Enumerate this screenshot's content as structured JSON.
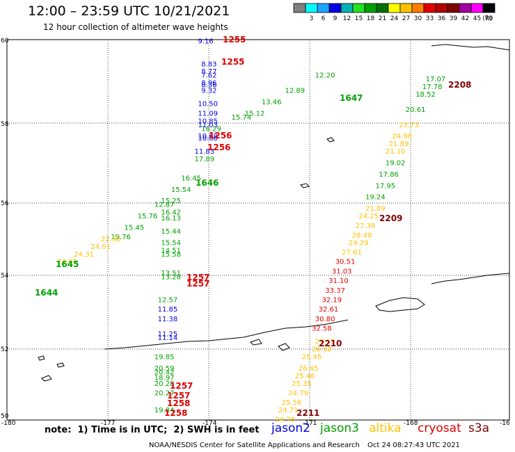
{
  "header": {
    "title": "12:00 – 23:59 UTC 10/21/2021",
    "subtitle": "12 hour collection of altimeter wave heights"
  },
  "colorbar": {
    "unit_label": "(ft)",
    "bins": [
      {
        "label": "",
        "color": "#7f7f7f"
      },
      {
        "label": "3",
        "color": "#00ffff"
      },
      {
        "label": "6",
        "color": "#1ea3ff"
      },
      {
        "label": "9",
        "color": "#0000e0"
      },
      {
        "label": "12",
        "color": "#00b2b2"
      },
      {
        "label": "15",
        "color": "#23e123"
      },
      {
        "label": "18",
        "color": "#00a000"
      },
      {
        "label": "21",
        "color": "#007000"
      },
      {
        "label": "24",
        "color": "#ffff00"
      },
      {
        "label": "27",
        "color": "#ffc000"
      },
      {
        "label": "30",
        "color": "#ff8000"
      },
      {
        "label": "33",
        "color": "#e00000"
      },
      {
        "label": "36",
        "color": "#b00000"
      },
      {
        "label": "39",
        "color": "#800000"
      },
      {
        "label": "42",
        "color": "#a000a0"
      },
      {
        "label": "45",
        "color": "#ff00ff"
      },
      {
        "label": "70",
        "color": "#000000"
      }
    ]
  },
  "map": {
    "lon_ticks": [
      "-180",
      "-177",
      "-174",
      "-171",
      "-168",
      "-16"
    ],
    "lat_ticks": [
      "60",
      "58",
      "56",
      "54",
      "52",
      "50"
    ]
  },
  "chart_data": {
    "type": "scatter",
    "title": "12:00 – 23:59 UTC 10/21/2021",
    "xlabel": "",
    "ylabel": "",
    "xlim": [
      -180,
      -165
    ],
    "ylim": [
      50,
      60
    ],
    "grid": true,
    "series": [
      {
        "name": "jason2",
        "color": "#0000e0",
        "points": [
          {
            "lon": -174.3,
            "lat": 59.9,
            "swh": 9.16
          },
          {
            "lon": -174.2,
            "lat": 59.3,
            "swh": 8.83
          },
          {
            "lon": -174.2,
            "lat": 59.1,
            "swh": 8.77
          },
          {
            "lon": -174.2,
            "lat": 59.0,
            "swh": 7.62
          },
          {
            "lon": -174.2,
            "lat": 58.8,
            "swh": 8.96
          },
          {
            "lon": -174.2,
            "lat": 58.75,
            "swh": 8.36
          },
          {
            "lon": -174.2,
            "lat": 58.6,
            "swh": 9.32
          },
          {
            "lon": -174.3,
            "lat": 58.25,
            "swh": 10.5
          },
          {
            "lon": -174.3,
            "lat": 58.0,
            "swh": 11.09
          },
          {
            "lon": -174.3,
            "lat": 57.8,
            "swh": 10.85
          },
          {
            "lon": -174.3,
            "lat": 57.7,
            "swh": 11.03
          },
          {
            "lon": -174.3,
            "lat": 57.4,
            "swh": 10.69
          },
          {
            "lon": -174.3,
            "lat": 57.35,
            "swh": 10.68
          },
          {
            "lon": -174.4,
            "lat": 57.0,
            "swh": 11.83
          },
          {
            "lon": -175.5,
            "lat": 52.85,
            "swh": 11.85
          },
          {
            "lon": -175.5,
            "lat": 52.6,
            "swh": 11.38
          },
          {
            "lon": -175.5,
            "lat": 52.2,
            "swh": 11.25
          },
          {
            "lon": -175.5,
            "lat": 52.1,
            "swh": 11.14
          }
        ]
      },
      {
        "name": "jason3",
        "color": "#00a000",
        "points": [
          {
            "lon": -176.9,
            "lat": 54.75,
            "swh": 19.76
          },
          {
            "lon": -176.5,
            "lat": 55.0,
            "swh": 15.45
          },
          {
            "lon": -176.1,
            "lat": 55.3,
            "swh": 15.76
          },
          {
            "lon": -175.6,
            "lat": 55.6,
            "swh": 12.87
          },
          {
            "lon": -175.1,
            "lat": 56.0,
            "swh": 15.54
          },
          {
            "lon": -174.8,
            "lat": 56.3,
            "swh": 16.45
          },
          {
            "lon": -174.4,
            "lat": 56.8,
            "swh": 17.89
          },
          {
            "lon": -174.2,
            "lat": 57.6,
            "swh": 16.29
          },
          {
            "lon": -173.3,
            "lat": 57.9,
            "swh": 15.74
          },
          {
            "lon": -172.9,
            "lat": 58.0,
            "swh": 15.12
          },
          {
            "lon": -172.4,
            "lat": 58.3,
            "swh": 13.46
          },
          {
            "lon": -171.7,
            "lat": 58.6,
            "swh": 12.89
          },
          {
            "lon": -170.8,
            "lat": 59.0,
            "swh": 12.2
          },
          {
            "lon": -175.4,
            "lat": 55.7,
            "swh": 15.25
          },
          {
            "lon": -175.4,
            "lat": 55.4,
            "swh": 16.42
          },
          {
            "lon": -175.4,
            "lat": 55.25,
            "swh": 16.13
          },
          {
            "lon": -175.4,
            "lat": 54.9,
            "swh": 15.44
          },
          {
            "lon": -175.4,
            "lat": 54.6,
            "swh": 15.54
          },
          {
            "lon": -175.4,
            "lat": 54.4,
            "swh": 14.51
          },
          {
            "lon": -175.4,
            "lat": 54.3,
            "swh": 15.58
          },
          {
            "lon": -175.4,
            "lat": 53.8,
            "swh": 13.51
          },
          {
            "lon": -175.4,
            "lat": 53.7,
            "swh": 13.28
          },
          {
            "lon": -175.5,
            "lat": 53.1,
            "swh": 12.57
          },
          {
            "lon": -175.6,
            "lat": 51.6,
            "swh": 19.85
          },
          {
            "lon": -175.6,
            "lat": 51.3,
            "swh": 20.59
          },
          {
            "lon": -175.6,
            "lat": 51.2,
            "swh": 20.42
          },
          {
            "lon": -175.6,
            "lat": 51.05,
            "swh": 18.97
          },
          {
            "lon": -175.6,
            "lat": 50.9,
            "swh": 20.28
          },
          {
            "lon": -175.6,
            "lat": 50.65,
            "swh": 20.27
          },
          {
            "lon": -175.6,
            "lat": 50.2,
            "swh": 19.84
          },
          {
            "lon": -168.7,
            "lat": 56.7,
            "swh": 19.02
          },
          {
            "lon": -168.9,
            "lat": 56.4,
            "swh": 17.86
          },
          {
            "lon": -169.0,
            "lat": 56.1,
            "swh": 17.95
          },
          {
            "lon": -169.3,
            "lat": 55.8,
            "swh": 19.24
          },
          {
            "lon": -167.5,
            "lat": 58.9,
            "swh": 17.07
          },
          {
            "lon": -167.6,
            "lat": 58.7,
            "swh": 17.78
          },
          {
            "lon": -167.8,
            "lat": 58.5,
            "swh": 18.52
          },
          {
            "lon": -168.1,
            "lat": 58.1,
            "swh": 20.61
          }
        ]
      },
      {
        "name": "altika",
        "color": "#ffc000",
        "points": [
          {
            "lon": -178.5,
            "lat": 54.1,
            "swh": 24.99
          },
          {
            "lon": -178.0,
            "lat": 54.3,
            "swh": 24.31
          },
          {
            "lon": -177.5,
            "lat": 54.5,
            "swh": 24.01
          },
          {
            "lon": -177.2,
            "lat": 54.7,
            "swh": 22.58
          },
          {
            "lon": -169.3,
            "lat": 55.5,
            "swh": 21.89
          },
          {
            "lon": -169.5,
            "lat": 55.3,
            "swh": 24.25
          },
          {
            "lon": -169.6,
            "lat": 55.05,
            "swh": 27.38
          },
          {
            "lon": -169.7,
            "lat": 54.8,
            "swh": 28.48
          },
          {
            "lon": -169.8,
            "lat": 54.6,
            "swh": 29.29
          },
          {
            "lon": -170.0,
            "lat": 54.35,
            "swh": 27.61
          },
          {
            "lon": -170.8,
            "lat": 52.0,
            "swh": 27.15
          },
          {
            "lon": -170.9,
            "lat": 51.8,
            "swh": 26.58
          },
          {
            "lon": -171.2,
            "lat": 51.6,
            "swh": 25.45
          },
          {
            "lon": -171.3,
            "lat": 51.3,
            "swh": 26.45
          },
          {
            "lon": -171.4,
            "lat": 51.1,
            "swh": 25.46
          },
          {
            "lon": -171.5,
            "lat": 50.9,
            "swh": 25.35
          },
          {
            "lon": -171.6,
            "lat": 50.65,
            "swh": 24.79
          },
          {
            "lon": -171.8,
            "lat": 50.4,
            "swh": 25.56
          },
          {
            "lon": -171.9,
            "lat": 50.2,
            "swh": 24.71
          },
          {
            "lon": -172.0,
            "lat": 49.95,
            "swh": 24.78
          },
          {
            "lon": -168.3,
            "lat": 57.7,
            "swh": 23.73
          },
          {
            "lon": -168.5,
            "lat": 57.4,
            "swh": 24.98
          },
          {
            "lon": -168.6,
            "lat": 57.2,
            "swh": 21.89
          },
          {
            "lon": -168.7,
            "lat": 57.0,
            "swh": 21.1
          }
        ]
      },
      {
        "name": "cryosat",
        "color": "#e00000",
        "points": [
          {
            "lon": -170.2,
            "lat": 54.1,
            "swh": 30.51
          },
          {
            "lon": -170.3,
            "lat": 53.85,
            "swh": 31.03
          },
          {
            "lon": -170.4,
            "lat": 53.6,
            "swh": 31.1
          },
          {
            "lon": -170.5,
            "lat": 53.35,
            "swh": 33.37
          },
          {
            "lon": -170.6,
            "lat": 53.1,
            "swh": 32.19
          },
          {
            "lon": -170.7,
            "lat": 52.85,
            "swh": 32.61
          },
          {
            "lon": -170.8,
            "lat": 52.6,
            "swh": 30.8
          },
          {
            "lon": -170.9,
            "lat": 52.35,
            "swh": 32.58
          }
        ]
      },
      {
        "name": "s3a",
        "color": "#800000",
        "points": []
      }
    ]
  },
  "time_labels": [
    {
      "text": "1255",
      "color": "#e00000"
    },
    {
      "text": "1255",
      "color": "#e00000"
    },
    {
      "text": "1256",
      "color": "#e00000"
    },
    {
      "text": "1256",
      "color": "#e00000"
    },
    {
      "text": "1646",
      "color": "#00a000"
    },
    {
      "text": "1647",
      "color": "#00a000"
    },
    {
      "text": "1645",
      "color": "#00a000"
    },
    {
      "text": "1644",
      "color": "#00a000"
    },
    {
      "text": "1257",
      "color": "#e00000"
    },
    {
      "text": "1257",
      "color": "#e00000"
    },
    {
      "text": "1257",
      "color": "#e00000"
    },
    {
      "text": "1257",
      "color": "#e00000"
    },
    {
      "text": "1258",
      "color": "#e00000"
    },
    {
      "text": "1258",
      "color": "#e00000"
    },
    {
      "text": "2208",
      "color": "#800000"
    },
    {
      "text": "2209",
      "color": "#800000"
    },
    {
      "text": "2210",
      "color": "#800000"
    },
    {
      "text": "2211",
      "color": "#800000"
    }
  ],
  "footer": {
    "note": "note:  1) Time is in UTC;  2) SWH is in feet",
    "legend": [
      {
        "name": "jason2",
        "color": "#0000e0"
      },
      {
        "name": "jason3",
        "color": "#00a000"
      },
      {
        "name": "altika",
        "color": "#ffc000"
      },
      {
        "name": "cryosat",
        "color": "#e00000"
      },
      {
        "name": "s3a",
        "color": "#800000"
      }
    ],
    "credit": "NOAA/NESDIS Center for Satellite Applications and Research",
    "generated": "Oct 24 08:27:43 UTC 2021"
  }
}
